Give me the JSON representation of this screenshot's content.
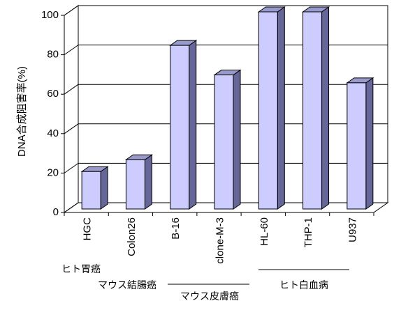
{
  "chart_data": {
    "type": "bar3d",
    "ylabel": "DNA合成阻害率(%)",
    "categories": [
      "HGC",
      "Colon26",
      "B-16",
      "clone-M-3",
      "HL-60",
      "THP-1",
      "U937"
    ],
    "values": [
      19,
      25,
      83,
      68,
      100,
      100,
      64
    ],
    "color": "#ccccff",
    "ylim": [
      0,
      100
    ],
    "yticks": [
      0,
      20,
      40,
      60,
      80,
      100
    ],
    "grid": true,
    "groups": [
      "ヒト胃癌",
      "マウス結腸癌",
      "マウス皮膚癌",
      "ヒト白血病"
    ]
  }
}
